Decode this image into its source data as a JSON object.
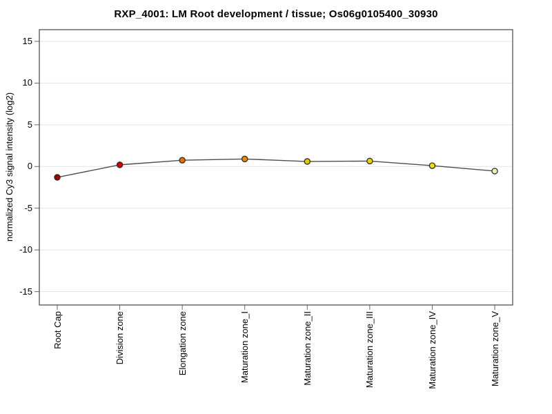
{
  "chart_data": {
    "type": "line",
    "title": "RXP_4001: LM Root development / tissue; Os06g0105400_30930",
    "xlabel": "",
    "ylabel": "normalized Cy3 signal intensity (log2)",
    "categories": [
      "Root Cap",
      "Division zone",
      "Elongation zone",
      "Maturation zone_I",
      "Maturation zone_II",
      "Maturation zone_III",
      "Maturation zone_IV",
      "Maturation zone_V"
    ],
    "values": [
      -1.3,
      0.2,
      0.75,
      0.9,
      0.6,
      0.65,
      0.1,
      -0.55
    ],
    "point_colors": [
      "#a00000",
      "#d40000",
      "#e86c00",
      "#ee8a00",
      "#e2c800",
      "#e8d200",
      "#ece000",
      "#f2efae"
    ],
    "y_ticks": [
      15,
      10,
      5,
      0,
      -5,
      -10,
      -15
    ],
    "ylim": [
      -16.6,
      16.4
    ],
    "grid": true,
    "legend": "none",
    "colors": {
      "line": "#4d4d4d",
      "point_border": "#2b2b2b",
      "grid": "#e3e3e3",
      "frame": "#444444",
      "tick": "#666666",
      "text": "#000000",
      "background": "#ffffff"
    }
  }
}
